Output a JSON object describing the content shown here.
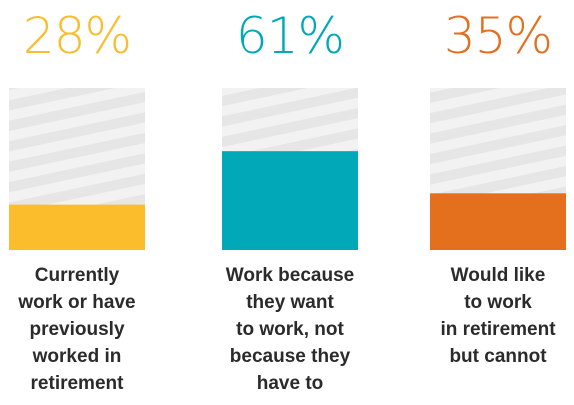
{
  "chart_data": {
    "type": "bar",
    "categories": [
      "Currently work or have previously worked in retirement",
      "Work because they want to work, not because they have to",
      "Would like to work in retirement but cannot"
    ],
    "values": [
      28,
      61,
      35
    ],
    "value_labels": [
      "28%",
      "61%",
      "35%"
    ],
    "caption_lines": [
      [
        "Currently",
        "work or have",
        "previously",
        "worked in",
        "retirement"
      ],
      [
        "Work because",
        "they want",
        "to work, not",
        "because they",
        "have to"
      ],
      [
        "Would like",
        "to work",
        "in retirement",
        "but cannot"
      ]
    ],
    "colors": [
      "#fbbd2c",
      "#01a9b8",
      "#e4701e"
    ],
    "ylim": [
      0,
      100
    ],
    "grid": false,
    "legend": "none"
  }
}
